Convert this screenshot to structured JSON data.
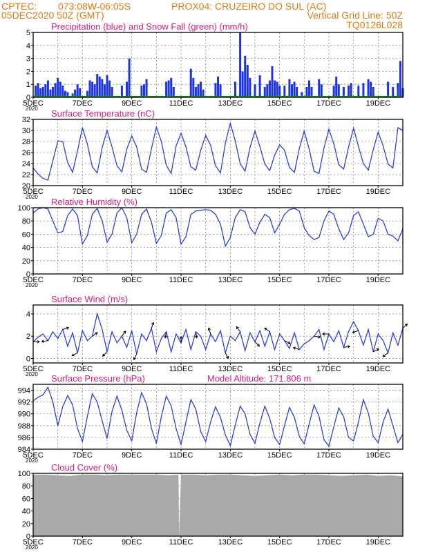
{
  "header": {
    "line1_left": "CPTEC:",
    "line1_coords": "073:08W-06:05S",
    "line1_station": "PROX04: CRUZEIRO DO SUL (AC)",
    "line2_left": "05DEC2020 50Z (GMT)",
    "line2_right": "Vertical Grid Line: 50Z",
    "line3_right": "TQ0126L028"
  },
  "x_axis": {
    "tick_labels": [
      "5DEC",
      "7DEC",
      "9DEC",
      "11DEC",
      "13DEC",
      "15DEC",
      "17DEC",
      "19DEC"
    ],
    "year_label": "2020",
    "day_range": [
      5,
      20
    ]
  },
  "colors": {
    "header": "#e07a12",
    "title": "#e0197d",
    "precip": "#1e32e6",
    "snow": "#00a000",
    "line": "#2a3fe0",
    "wind": "#2a3fe0",
    "arrow": "#000000",
    "cloud": "#a9a9a9",
    "grid": "#888888"
  },
  "chart_data": [
    {
      "id": "precip",
      "type": "bar",
      "title": "Precipitation (blue) and Snow Fall (green) (mm/h)",
      "ylim": [
        0,
        5
      ],
      "yticks": [
        0,
        1,
        2,
        3,
        4,
        5
      ],
      "x": [
        5.1,
        5.2,
        5.3,
        5.4,
        5.5,
        5.6,
        5.7,
        5.8,
        5.9,
        6.0,
        6.1,
        6.2,
        6.3,
        6.4,
        6.6,
        6.7,
        6.8,
        6.9,
        7.2,
        7.3,
        7.4,
        7.5,
        7.6,
        7.7,
        7.8,
        7.9,
        8.0,
        8.1,
        8.2,
        8.6,
        8.8,
        8.9,
        9.4,
        9.5,
        9.6,
        10.4,
        10.5,
        10.6,
        10.7,
        11.4,
        11.5,
        11.6,
        11.7,
        11.8,
        11.9,
        12.4,
        12.5,
        12.6,
        13.2,
        13.4,
        13.5,
        13.6,
        13.7,
        13.8,
        14.0,
        14.2,
        14.4,
        14.5,
        14.6,
        14.7,
        14.8,
        14.9,
        15.0,
        15.2,
        15.4,
        15.5,
        15.6,
        15.7,
        15.9,
        16.1,
        16.2,
        16.3,
        16.6,
        16.7,
        17.2,
        17.3,
        17.4,
        17.6,
        17.8,
        17.9,
        18.2,
        18.4,
        18.6,
        18.7,
        18.8,
        19.4,
        19.6,
        19.8,
        19.9,
        20.0
      ],
      "series": [
        {
          "name": "Precipitation",
          "values": [
            0.9,
            1.1,
            0.7,
            0.8,
            1.0,
            1.3,
            0.6,
            0.8,
            1.1,
            1.5,
            1.2,
            0.9,
            0.5,
            0.4,
            0.3,
            0.6,
            1.0,
            0.7,
            0.5,
            1.3,
            1.2,
            1.0,
            1.8,
            1.6,
            1.4,
            1.0,
            1.7,
            1.3,
            0.8,
            0.9,
            1.2,
            3.0,
            0.9,
            1.0,
            1.4,
            1.2,
            1.3,
            1.5,
            0.8,
            2.2,
            1.5,
            0.8,
            1.0,
            1.2,
            0.6,
            1.1,
            1.6,
            1.0,
            1.2,
            5.0,
            2.0,
            3.2,
            2.5,
            1.5,
            1.0,
            1.7,
            0.8,
            1.0,
            1.3,
            2.4,
            1.3,
            1.2,
            0.9,
            0.9,
            1.4,
            1.0,
            1.2,
            0.8,
            0.4,
            0.8,
            1.3,
            0.8,
            1.4,
            1.0,
            0.9,
            1.6,
            1.0,
            0.8,
            0.9,
            1.1,
            0.9,
            1.1,
            1.4,
            1.2,
            0.8,
            1.2,
            0.8,
            1.1,
            2.8,
            0.7
          ]
        },
        {
          "name": "Snow Fall",
          "values": [
            0,
            0,
            0,
            0,
            0,
            0,
            0,
            0,
            0,
            0,
            0,
            0,
            0,
            0,
            0,
            0,
            0,
            0,
            0,
            0,
            0,
            0,
            0,
            0,
            0,
            0,
            0,
            0,
            0,
            0,
            0,
            0,
            0,
            0,
            0,
            0,
            0,
            0,
            0,
            0,
            0,
            0,
            0,
            0,
            0,
            0,
            0,
            0,
            0,
            0,
            0,
            0,
            0,
            0,
            0,
            0,
            0,
            0,
            0,
            0,
            0,
            0,
            0,
            0,
            0,
            0,
            0,
            0,
            0,
            0,
            0,
            0,
            0,
            0,
            0,
            0,
            0,
            0,
            0,
            0,
            0,
            0,
            0,
            0,
            0,
            0,
            0,
            0,
            0,
            0
          ]
        }
      ]
    },
    {
      "id": "temp",
      "type": "line",
      "title": "Surface Temperature (nC)",
      "ylim": [
        20,
        32
      ],
      "yticks": [
        20,
        22,
        24,
        26,
        28,
        30,
        32
      ],
      "x": [
        5.0,
        5.2,
        5.4,
        5.6,
        5.8,
        6.0,
        6.2,
        6.4,
        6.6,
        6.8,
        7.0,
        7.2,
        7.4,
        7.6,
        7.8,
        8.0,
        8.2,
        8.4,
        8.6,
        8.8,
        9.0,
        9.2,
        9.4,
        9.6,
        9.8,
        10.0,
        10.2,
        10.4,
        10.6,
        10.8,
        11.0,
        11.2,
        11.4,
        11.6,
        11.8,
        12.0,
        12.2,
        12.4,
        12.6,
        12.8,
        13.0,
        13.2,
        13.4,
        13.6,
        13.8,
        14.0,
        14.2,
        14.4,
        14.6,
        14.8,
        15.0,
        15.2,
        15.4,
        15.6,
        15.8,
        16.0,
        16.2,
        16.4,
        16.6,
        16.8,
        17.0,
        17.2,
        17.4,
        17.6,
        17.8,
        18.0,
        18.2,
        18.4,
        18.6,
        18.8,
        19.0,
        19.2,
        19.4,
        19.6,
        19.8,
        20.0
      ],
      "series": [
        {
          "name": "",
          "values": [
            23.2,
            22.1,
            21.3,
            21.0,
            24.5,
            28.1,
            28.0,
            24.2,
            22.4,
            26.3,
            30.5,
            27.5,
            23.4,
            22.3,
            26.9,
            30.0,
            27.0,
            23.6,
            22.5,
            26.6,
            29.0,
            27.0,
            23.0,
            22.4,
            26.7,
            30.6,
            28.0,
            23.7,
            22.2,
            27.2,
            29.5,
            27.0,
            23.4,
            22.8,
            26.4,
            29.1,
            27.3,
            23.6,
            22.3,
            27.7,
            31.3,
            28.1,
            24.0,
            22.6,
            26.9,
            29.9,
            27.1,
            23.9,
            22.7,
            25.5,
            27.4,
            26.4,
            23.3,
            22.4,
            26.7,
            29.9,
            26.6,
            22.6,
            22.2,
            26.8,
            30.2,
            27.6,
            23.8,
            23.0,
            27.0,
            30.4,
            27.1,
            24.0,
            22.8,
            26.5,
            29.7,
            27.2,
            23.9,
            23.2,
            30.5,
            30.0
          ]
        }
      ]
    },
    {
      "id": "rh",
      "type": "line",
      "title": "Relative Humidity (%)",
      "ylim": [
        0,
        100
      ],
      "yticks": [
        0,
        20,
        40,
        60,
        80,
        100
      ],
      "x": [
        5.0,
        5.2,
        5.4,
        5.6,
        5.8,
        6.0,
        6.2,
        6.4,
        6.6,
        6.8,
        7.0,
        7.2,
        7.4,
        7.6,
        7.8,
        8.0,
        8.2,
        8.4,
        8.6,
        8.8,
        9.0,
        9.2,
        9.4,
        9.6,
        9.8,
        10.0,
        10.2,
        10.4,
        10.6,
        10.8,
        11.0,
        11.2,
        11.4,
        11.6,
        11.8,
        12.0,
        12.2,
        12.4,
        12.6,
        12.8,
        13.0,
        13.2,
        13.4,
        13.6,
        13.8,
        14.0,
        14.2,
        14.4,
        14.6,
        14.8,
        15.0,
        15.2,
        15.4,
        15.6,
        15.8,
        16.0,
        16.2,
        16.4,
        16.6,
        16.8,
        17.0,
        17.2,
        17.4,
        17.6,
        17.8,
        18.0,
        18.2,
        18.4,
        18.6,
        18.8,
        19.0,
        19.2,
        19.4,
        19.6,
        19.8,
        20.0
      ],
      "series": [
        {
          "name": "",
          "values": [
            92,
            98,
            100,
            98,
            80,
            62,
            64,
            88,
            98,
            88,
            45,
            58,
            90,
            99,
            80,
            48,
            60,
            92,
            100,
            85,
            47,
            60,
            90,
            98,
            78,
            46,
            58,
            92,
            97,
            85,
            45,
            56,
            90,
            95,
            96,
            97,
            96,
            90,
            75,
            42,
            55,
            85,
            97,
            94,
            70,
            60,
            78,
            90,
            85,
            62,
            75,
            90,
            97,
            99,
            95,
            70,
            58,
            52,
            55,
            80,
            95,
            90,
            68,
            52,
            62,
            88,
            94,
            75,
            56,
            60,
            84,
            80,
            60,
            57,
            50,
            68
          ]
        }
      ]
    },
    {
      "id": "wind",
      "type": "line",
      "title": "Surface Wind (m/s)",
      "ylim": [
        -0.4,
        4.8
      ],
      "yticks": [
        0,
        2,
        4
      ],
      "x": [
        5.0,
        5.2,
        5.4,
        5.6,
        5.8,
        6.0,
        6.2,
        6.4,
        6.6,
        6.8,
        7.0,
        7.2,
        7.4,
        7.6,
        7.8,
        8.0,
        8.2,
        8.4,
        8.6,
        8.8,
        9.0,
        9.2,
        9.4,
        9.6,
        9.8,
        10.0,
        10.2,
        10.4,
        10.6,
        10.8,
        11.0,
        11.2,
        11.4,
        11.6,
        11.8,
        12.0,
        12.2,
        12.4,
        12.6,
        12.8,
        13.0,
        13.2,
        13.4,
        13.6,
        13.8,
        14.0,
        14.2,
        14.4,
        14.6,
        14.8,
        15.0,
        15.2,
        15.4,
        15.6,
        15.8,
        16.0,
        16.2,
        16.4,
        16.6,
        16.8,
        17.0,
        17.2,
        17.4,
        17.6,
        17.8,
        18.0,
        18.2,
        18.4,
        18.6,
        18.8,
        19.0,
        19.2,
        19.4,
        19.6,
        19.8,
        20.0
      ],
      "series": [
        {
          "name": "",
          "values": [
            1.5,
            1.9,
            2.2,
            1.6,
            2.4,
            1.8,
            2.6,
            1.1,
            2.3,
            0.5,
            2.5,
            1.6,
            2.0,
            4.0,
            2.6,
            0.6,
            2.4,
            1.4,
            2.0,
            1.0,
            2.5,
            0.4,
            2.2,
            1.6,
            2.7,
            0.6,
            1.8,
            2.4,
            0.6,
            2.2,
            1.4,
            2.6,
            0.8,
            2.4,
            2.0,
            0.8,
            2.2,
            1.5,
            2.5,
            0.5,
            2.0,
            1.6,
            2.4,
            0.7,
            2.3,
            1.5,
            2.5,
            1.1,
            2.4,
            0.8,
            2.2,
            1.6,
            0.9,
            2.3,
            0.8,
            1.3,
            1.6,
            2.0,
            2.6,
            0.8,
            2.2,
            1.5,
            2.5,
            1.0,
            2.4,
            3.3,
            2.5,
            1.2,
            2.6,
            0.6,
            2.2,
            1.6,
            0.5,
            2.3,
            1.2,
            2.7
          ]
        }
      ]
    },
    {
      "id": "pressure",
      "type": "line",
      "title": "Surface Pressure (hPa)",
      "annotation": "Model Altitude: 171.806 m",
      "ylim": [
        984,
        995
      ],
      "yticks": [
        984,
        986,
        988,
        990,
        992,
        994
      ],
      "x": [
        5.0,
        5.2,
        5.4,
        5.6,
        5.8,
        6.0,
        6.2,
        6.4,
        6.6,
        6.8,
        7.0,
        7.2,
        7.4,
        7.6,
        7.8,
        8.0,
        8.2,
        8.4,
        8.6,
        8.8,
        9.0,
        9.2,
        9.4,
        9.6,
        9.8,
        10.0,
        10.2,
        10.4,
        10.6,
        10.8,
        11.0,
        11.2,
        11.4,
        11.6,
        11.8,
        12.0,
        12.2,
        12.4,
        12.6,
        12.8,
        13.0,
        13.2,
        13.4,
        13.6,
        13.8,
        14.0,
        14.2,
        14.4,
        14.6,
        14.8,
        15.0,
        15.2,
        15.4,
        15.6,
        15.8,
        16.0,
        16.2,
        16.4,
        16.6,
        16.8,
        17.0,
        17.2,
        17.4,
        17.6,
        17.8,
        18.0,
        18.2,
        18.4,
        18.6,
        18.8,
        19.0,
        19.2,
        19.4,
        19.6,
        19.8,
        20.0
      ],
      "series": [
        {
          "name": "",
          "values": [
            992.2,
            992.8,
            993.2,
            994.5,
            992.0,
            988.0,
            991.2,
            993.1,
            991.5,
            987.5,
            985.3,
            989.6,
            993.4,
            992.0,
            988.8,
            985.8,
            990.4,
            993.0,
            990.6,
            987.2,
            985.4,
            990.2,
            993.6,
            991.7,
            987.5,
            985.0,
            989.5,
            993.0,
            991.4,
            987.5,
            984.8,
            988.6,
            992.4,
            990.8,
            987.0,
            985.3,
            988.6,
            991.2,
            989.4,
            986.4,
            984.6,
            988.1,
            991.3,
            990.0,
            986.5,
            985.0,
            988.4,
            991.3,
            989.2,
            986.0,
            984.8,
            988.0,
            991.1,
            989.4,
            986.2,
            984.9,
            988.3,
            991.5,
            989.6,
            985.6,
            984.5,
            987.8,
            991.0,
            989.5,
            986.0,
            985.4,
            988.6,
            992.4,
            990.1,
            986.2,
            985.1,
            988.6,
            990.8,
            988.0,
            985.1,
            986.5
          ]
        }
      ]
    },
    {
      "id": "cloud",
      "type": "area",
      "title": "Cloud Cover (%)",
      "ylim": [
        0,
        100
      ],
      "yticks": [
        0,
        20,
        40,
        60,
        80,
        100
      ],
      "x": [
        5.0,
        5.5,
        6.0,
        6.5,
        7.0,
        7.5,
        8.0,
        8.5,
        9.0,
        9.5,
        10.0,
        10.5,
        10.9,
        10.92,
        11.0,
        11.5,
        12.0,
        12.5,
        13.0,
        13.5,
        14.0,
        14.5,
        15.0,
        15.5,
        16.0,
        16.5,
        17.0,
        17.5,
        18.0,
        18.5,
        19.0,
        19.5,
        20.0
      ],
      "series": [
        {
          "name": "",
          "values": [
            98,
            98,
            97,
            96,
            98,
            98,
            97,
            98,
            98,
            98,
            98,
            97,
            98,
            0,
            98,
            98,
            97,
            98,
            98,
            97,
            96,
            97,
            98,
            97,
            98,
            98,
            97,
            96,
            97,
            98,
            96,
            97,
            95
          ]
        }
      ]
    }
  ]
}
